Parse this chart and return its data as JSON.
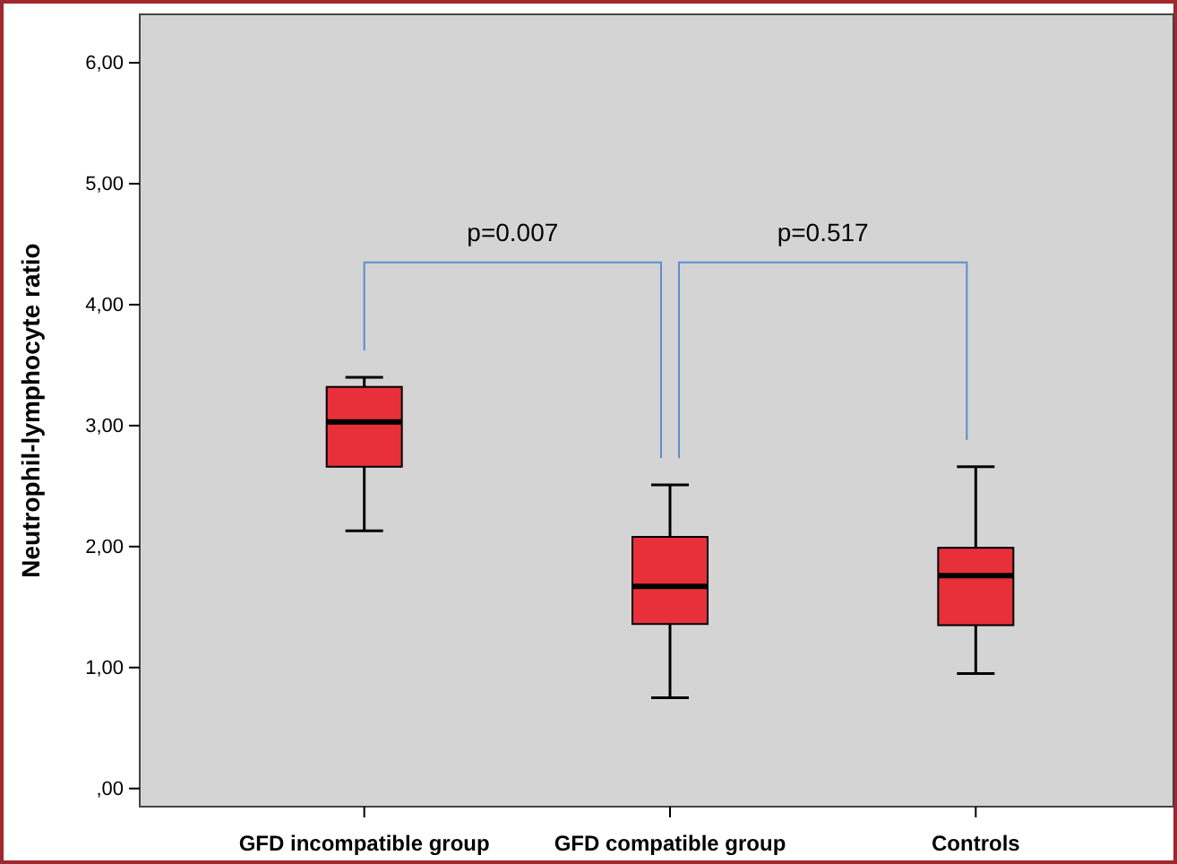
{
  "chart_data": {
    "type": "box",
    "ylabel": "Neutrophil-lymphocyte ratio",
    "categories": [
      "GFD incompatible group",
      "GFD compatible group",
      "Controls"
    ],
    "boxes": [
      {
        "low": 2.13,
        "q1": 2.66,
        "median": 3.03,
        "q3": 3.32,
        "high": 3.4
      },
      {
        "low": 0.75,
        "q1": 1.36,
        "median": 1.67,
        "q3": 2.08,
        "high": 2.51
      },
      {
        "low": 0.95,
        "q1": 1.35,
        "median": 1.76,
        "q3": 1.99,
        "high": 2.66
      }
    ],
    "color": "#e8303a",
    "ylim": [
      -0.15,
      6.4
    ],
    "yticks": [
      {
        "value": 0,
        "label": ",00"
      },
      {
        "value": 1,
        "label": "1,00"
      },
      {
        "value": 2,
        "label": "2,00"
      },
      {
        "value": 3,
        "label": "3,00"
      },
      {
        "value": 4,
        "label": "4,00"
      },
      {
        "value": 5,
        "label": "5,00"
      },
      {
        "value": 6,
        "label": "6,00"
      }
    ],
    "grid": false,
    "annotations": [
      "p=0.007",
      "p=0.517"
    ]
  }
}
